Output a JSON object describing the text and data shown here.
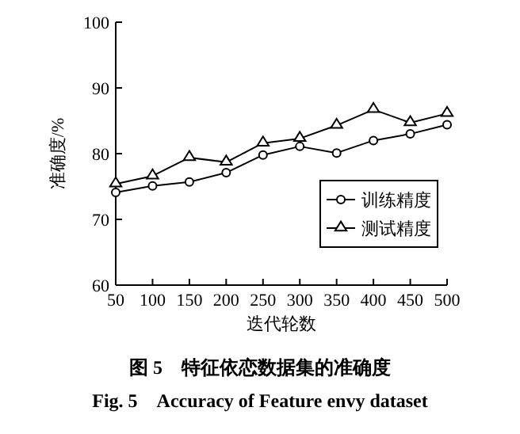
{
  "chart_data": {
    "type": "line",
    "xlabel": "迭代轮数",
    "ylabel": "准确度/%",
    "x": [
      50,
      100,
      150,
      200,
      250,
      300,
      350,
      400,
      450,
      500
    ],
    "xlim": [
      50,
      500
    ],
    "xticks": [
      50,
      100,
      150,
      200,
      250,
      300,
      350,
      400,
      450,
      500
    ],
    "ylim": [
      60,
      100
    ],
    "yticks": [
      60,
      70,
      80,
      90,
      100
    ],
    "series": [
      {
        "name": "训练精度",
        "color": "#000000",
        "marker": "circle",
        "values": [
          74.1,
          75.1,
          75.7,
          77.1,
          79.8,
          81.1,
          80.1,
          82.0,
          83.0,
          84.4
        ]
      },
      {
        "name": "测试精度",
        "color": "#000000",
        "marker": "triangle",
        "values": [
          75.4,
          76.6,
          79.4,
          78.7,
          81.6,
          82.3,
          84.3,
          86.7,
          84.7,
          86.1
        ]
      }
    ],
    "grid": false,
    "legend": "bottom right",
    "line_style": "solid",
    "annotations": [
      "图 5　特征依恋数据集的准确度",
      "Fig. 5　Accuracy of Feature envy dataset"
    ]
  }
}
